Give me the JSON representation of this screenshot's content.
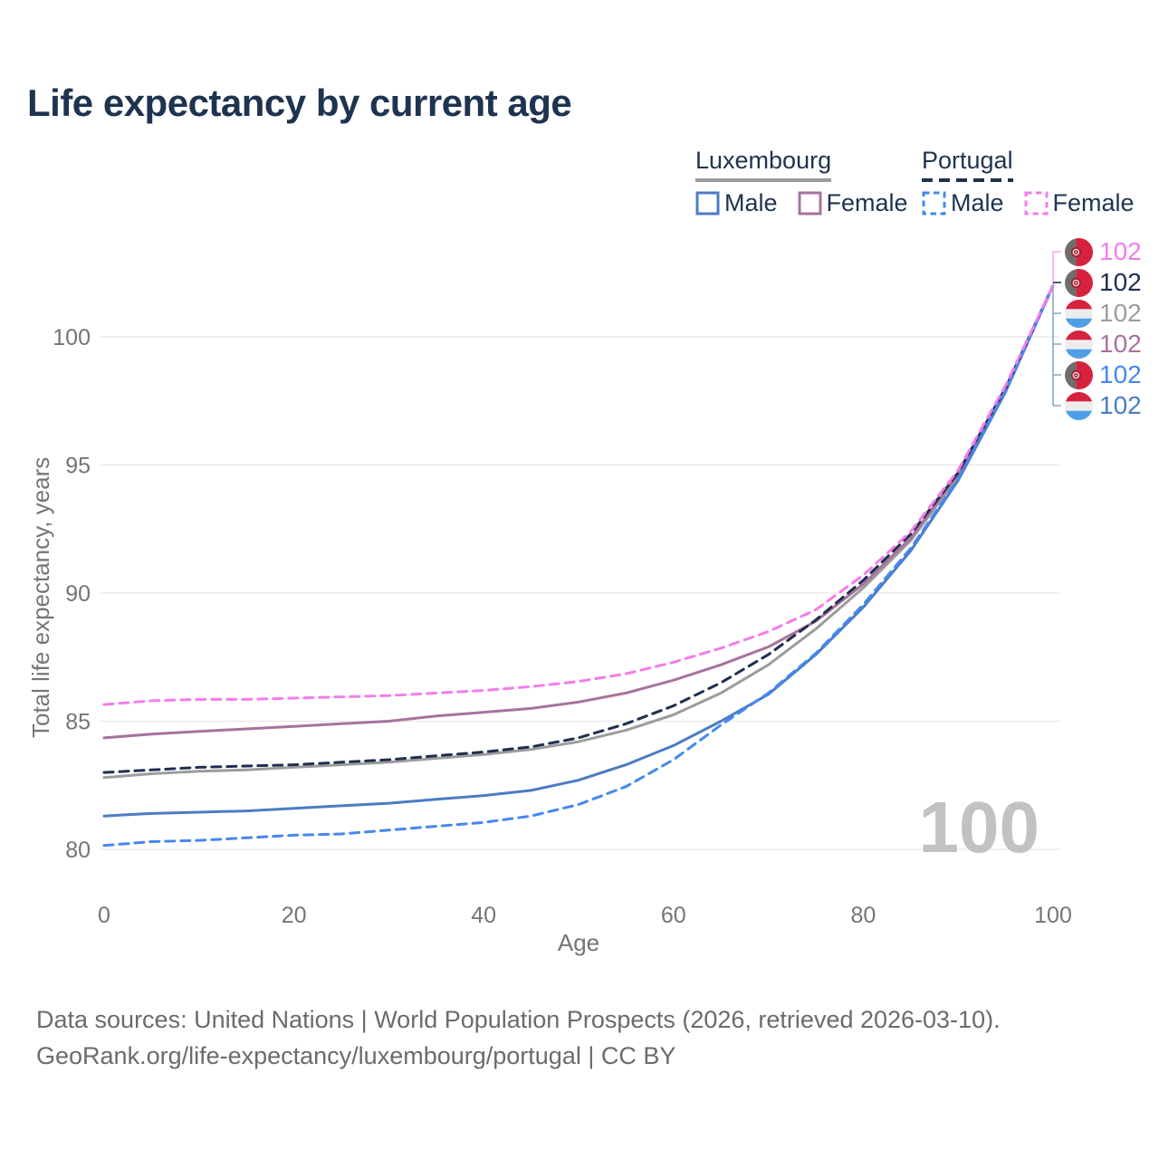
{
  "title": "Life expectancy by current age",
  "legend": {
    "groups": [
      {
        "label": "Luxembourg",
        "line_style": "solid",
        "line_color": "#9c9c9c",
        "items": [
          {
            "label": "Male",
            "color": "#4b7cc4",
            "dashed": false
          },
          {
            "label": "Female",
            "color": "#a8719d",
            "dashed": false
          }
        ]
      },
      {
        "label": "Portugal",
        "line_style": "dashed",
        "line_color": "#1f2f4f",
        "items": [
          {
            "label": "Male",
            "color": "#4488f0",
            "dashed": true
          },
          {
            "label": "Female",
            "color": "#f47ceb",
            "dashed": true
          }
        ]
      }
    ]
  },
  "age_indicator": "100",
  "chart_data": {
    "type": "line",
    "title": "Life expectancy by current age",
    "xlabel": "Age",
    "ylabel": "Total life expectancy, years",
    "xlim": [
      0,
      100
    ],
    "ylim": [
      79.5,
      102.5
    ],
    "xticks": [
      0,
      20,
      40,
      60,
      80,
      100
    ],
    "yticks": [
      80,
      85,
      90,
      95,
      100
    ],
    "grid": true,
    "legend_position": "top-right",
    "x": [
      0,
      5,
      10,
      15,
      20,
      25,
      30,
      35,
      40,
      45,
      50,
      55,
      60,
      65,
      70,
      75,
      80,
      85,
      90,
      95,
      100
    ],
    "series": [
      {
        "name": "Portugal Female",
        "country": "Portugal",
        "sex": "Female",
        "color": "#f47ceb",
        "dash": "dashed",
        "flag": "pt",
        "end_label": "102",
        "label_color": "#f47ceb",
        "values": [
          85.65,
          85.8,
          85.85,
          85.85,
          85.9,
          85.95,
          86.0,
          86.1,
          86.2,
          86.35,
          86.55,
          86.85,
          87.3,
          87.85,
          88.5,
          89.35,
          90.7,
          92.4,
          94.8,
          98.1,
          102
        ]
      },
      {
        "name": "Portugal",
        "country": "Portugal",
        "sex": "Both",
        "color": "#1f2f4f",
        "dash": "dashed",
        "flag": "pt",
        "end_label": "102",
        "label_color": "#1f2f4f",
        "values": [
          83.0,
          83.1,
          83.2,
          83.25,
          83.3,
          83.4,
          83.5,
          83.65,
          83.8,
          84.0,
          84.35,
          84.9,
          85.6,
          86.5,
          87.6,
          88.95,
          90.5,
          92.3,
          94.7,
          98.0,
          102
        ]
      },
      {
        "name": "Luxembourg",
        "country": "Luxembourg",
        "sex": "Both",
        "color": "#9c9c9c",
        "dash": "solid",
        "flag": "lu",
        "end_label": "102",
        "label_color": "#9c9c9c",
        "values": [
          82.8,
          82.95,
          83.05,
          83.1,
          83.2,
          83.3,
          83.4,
          83.55,
          83.7,
          83.9,
          84.2,
          84.65,
          85.25,
          86.1,
          87.2,
          88.6,
          90.2,
          92.05,
          94.55,
          97.9,
          102
        ]
      },
      {
        "name": "Luxembourg Female",
        "country": "Luxembourg",
        "sex": "Female",
        "color": "#a8719d",
        "dash": "solid",
        "flag": "lu",
        "end_label": "102",
        "label_color": "#a8719d",
        "values": [
          84.35,
          84.5,
          84.6,
          84.7,
          84.8,
          84.9,
          85.0,
          85.2,
          85.35,
          85.5,
          85.75,
          86.1,
          86.6,
          87.2,
          87.9,
          88.9,
          90.35,
          92.15,
          94.65,
          98.0,
          102
        ]
      },
      {
        "name": "Portugal Male",
        "country": "Portugal",
        "sex": "Male",
        "color": "#4488f0",
        "dash": "dashed",
        "flag": "pt",
        "end_label": "102",
        "label_color": "#4488f0",
        "values": [
          80.15,
          80.3,
          80.35,
          80.45,
          80.55,
          80.6,
          80.75,
          80.9,
          81.05,
          81.3,
          81.75,
          82.45,
          83.5,
          84.85,
          86.1,
          87.65,
          89.55,
          91.75,
          94.45,
          97.9,
          102
        ]
      },
      {
        "name": "Luxembourg Male",
        "country": "Luxembourg",
        "sex": "Male",
        "color": "#4b7cc4",
        "dash": "solid",
        "flag": "lu",
        "end_label": "102",
        "label_color": "#4b7cc4",
        "values": [
          81.3,
          81.4,
          81.45,
          81.5,
          81.6,
          81.7,
          81.8,
          81.95,
          82.1,
          82.3,
          82.7,
          83.3,
          84.05,
          85.0,
          86.05,
          87.6,
          89.45,
          91.65,
          94.4,
          97.85,
          102
        ]
      }
    ]
  },
  "colors": {
    "grid": "#e7e7e7",
    "axis_text": "#757575",
    "title_text": "#1e3350",
    "watermark": "#c2c2c2",
    "footer_text": "#6b6b6b",
    "bracket_blue": "#8ca6c9",
    "bracket_pink": "#f8a4f0"
  },
  "footer": {
    "line1": "Data sources: United Nations | World Population Prospects (2026, retrieved 2026-03-10).",
    "line2": "GeoRank.org/life-expectancy/luxembourg/portugal | CC BY"
  }
}
